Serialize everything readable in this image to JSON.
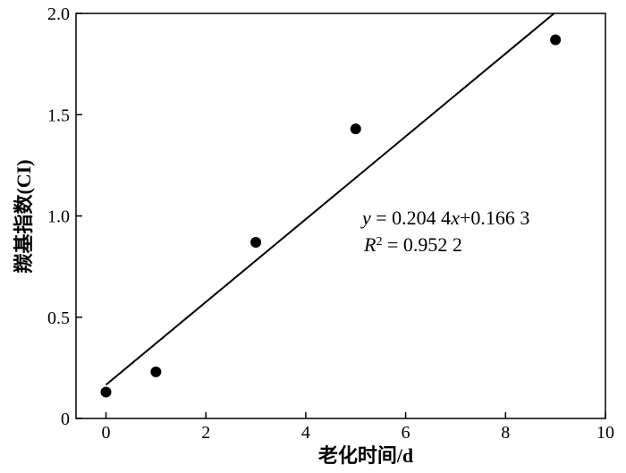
{
  "chart_data": {
    "type": "scatter",
    "xlabel": "老化时间/d",
    "ylabel": "羰基指数(CI)",
    "xlim": [
      -0.6,
      10
    ],
    "ylim": [
      0,
      2.0
    ],
    "x_ticks": [
      0,
      2,
      4,
      6,
      8,
      10
    ],
    "y_ticks": [
      0,
      0.5,
      1.0,
      1.5,
      2.0
    ],
    "x_tick_labels": [
      "0",
      "2",
      "4",
      "6",
      "8",
      "10"
    ],
    "y_tick_labels": [
      "0",
      "0.5",
      "1.0",
      "1.5",
      "2.0"
    ],
    "grid": false,
    "series": [
      {
        "marker": "filled-circle",
        "color": "#000000",
        "points": [
          {
            "x": 0,
            "y": 0.13
          },
          {
            "x": 1,
            "y": 0.23
          },
          {
            "x": 3,
            "y": 0.87
          },
          {
            "x": 5,
            "y": 1.43
          },
          {
            "x": 9,
            "y": 1.87
          }
        ]
      }
    ],
    "fit_line": {
      "slope": 0.2044,
      "intercept": 0.1663,
      "x_range": [
        0,
        8.97
      ],
      "color": "#000000"
    },
    "annotations": {
      "equation": "y = 0.204 4x+0.166 3",
      "r_squared": "R2 = 0.952 2"
    }
  }
}
